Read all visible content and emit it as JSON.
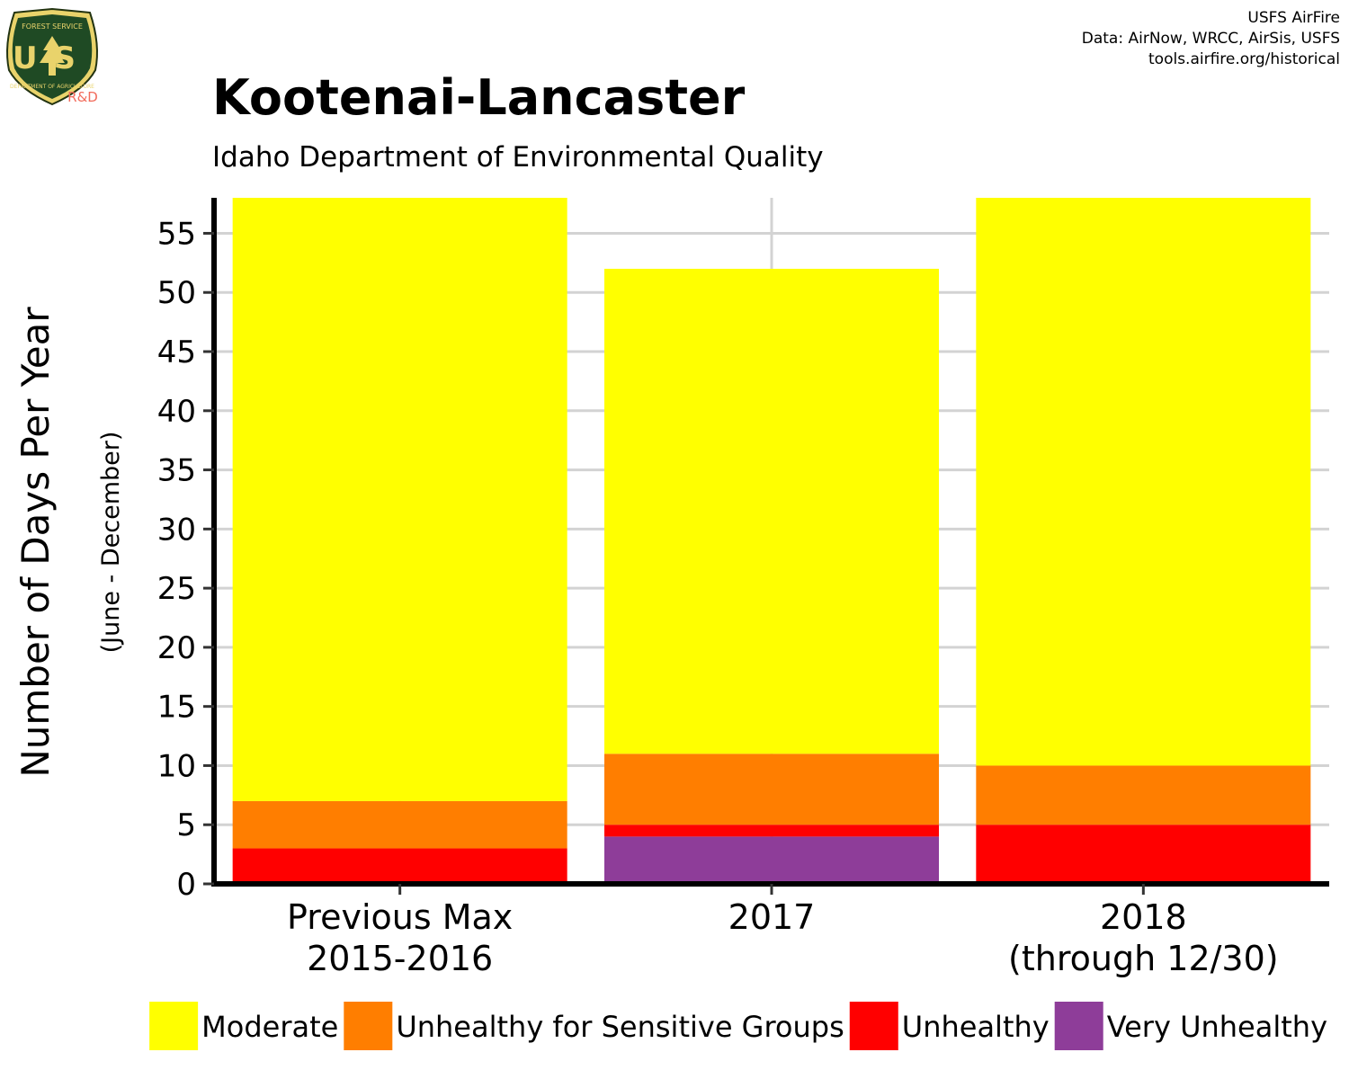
{
  "header": {
    "title": "Kootenai-Lancaster",
    "subtitle": "Idaho Department of Environmental Quality",
    "credits": [
      "USFS AirFire",
      "Data: AirNow, WRCC, AirSis, USFS",
      "tools.airfire.org/historical"
    ]
  },
  "logo": {
    "top_text": "FOREST SERVICE",
    "letters": "US",
    "bottom_text": "DEPARTMENT OF AGRICULTURE",
    "rd_text": "R&D"
  },
  "chart_data": {
    "type": "bar",
    "stacked": true,
    "title": "Kootenai-Lancaster",
    "subtitle": "Idaho Department of Environmental Quality",
    "ylabel": "Number of Days Per Year",
    "ylabel_sub": "(June - December)",
    "xlabel": "",
    "ylim": [
      0,
      58
    ],
    "yticks": [
      0,
      5,
      10,
      15,
      20,
      25,
      30,
      35,
      40,
      45,
      50,
      55
    ],
    "grid": true,
    "legend_position": "bottom",
    "categories": [
      [
        "Previous Max",
        "2015-2016"
      ],
      [
        "2017"
      ],
      [
        "2018",
        "(through 12/30)"
      ]
    ],
    "series": [
      {
        "name": "Very Unhealthy",
        "color": "#8e3d99",
        "values": [
          0,
          4,
          0
        ]
      },
      {
        "name": "Unhealthy",
        "color": "#ff0000",
        "values": [
          3,
          1,
          5
        ]
      },
      {
        "name": "Unhealthy for Sensitive Groups",
        "color": "#ff7e00",
        "values": [
          4,
          6,
          5
        ]
      },
      {
        "name": "Moderate",
        "color": "#ffff00",
        "values": [
          51,
          41,
          48
        ]
      }
    ],
    "legend": [
      "Moderate",
      "Unhealthy for Sensitive Groups",
      "Unhealthy",
      "Very Unhealthy"
    ]
  }
}
